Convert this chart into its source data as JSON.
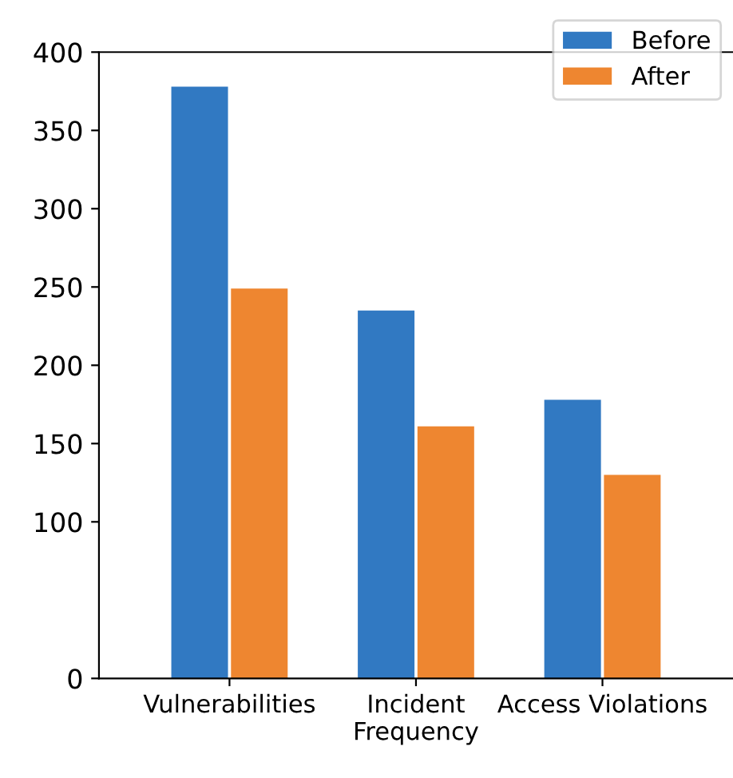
{
  "chart_data": {
    "type": "bar",
    "categories": [
      "Vulnerabilities",
      "Incident\nFrequency",
      "Access Violations"
    ],
    "series": [
      {
        "name": "Before",
        "color": "#3179c2",
        "values": [
          378,
          235,
          178
        ]
      },
      {
        "name": "After",
        "color": "#ee8630",
        "values": [
          249,
          161,
          130
        ]
      }
    ],
    "ylim": [
      0,
      400
    ],
    "yticks": [
      0,
      100,
      150,
      200,
      250,
      300,
      350,
      400
    ],
    "legend": "top right",
    "grid": false
  }
}
